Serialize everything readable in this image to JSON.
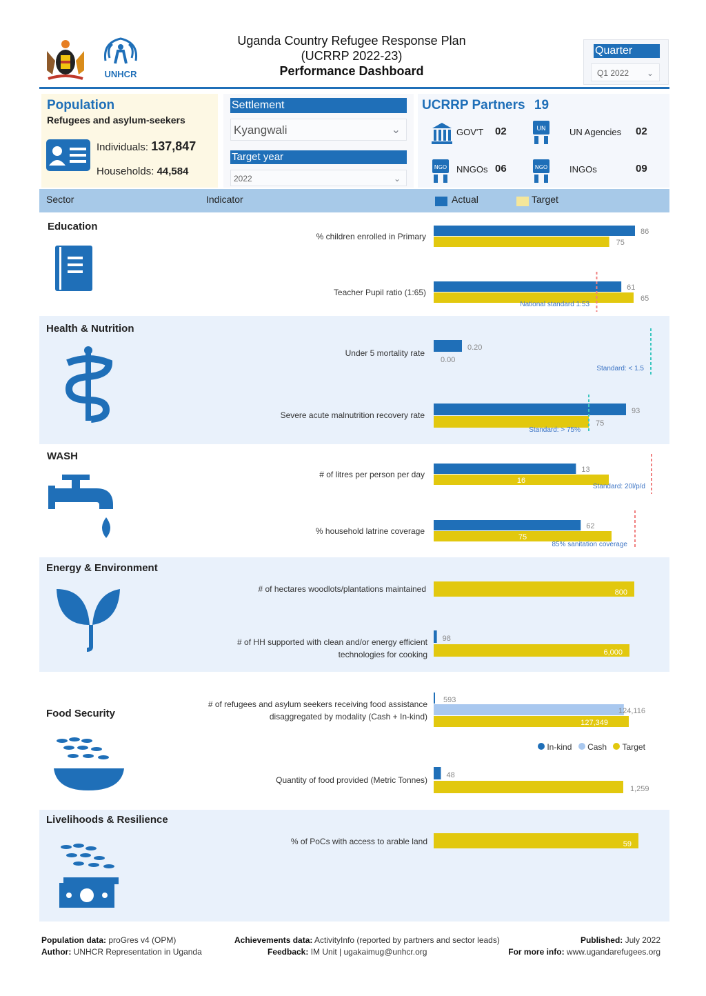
{
  "header": {
    "title_line1": "Uganda Country Refugee Response Plan",
    "title_line2": "(UCRRP 2022-23)",
    "title_line3": "Performance Dashboard",
    "unhcr_label": "UNHCR",
    "quarter_header": "Quarter",
    "quarter_value": "Q1 2022"
  },
  "population": {
    "title": "Population",
    "subtitle": "Refugees and asylum-seekers",
    "individuals_label": "Individuals:",
    "individuals_value": "137,847",
    "households_label": "Households:",
    "households_value": "44,584"
  },
  "filters": {
    "settlement_header": "Settlement",
    "settlement_value": "Kyangwali",
    "target_year_header": "Target year",
    "target_year_value": "2022"
  },
  "partners": {
    "title": "UCRRP Partners",
    "total": "19",
    "govt_label": "GOV'T",
    "govt_value": "02",
    "un_label": "UN Agencies",
    "un_value": "02",
    "nngo_label": "NNGOs",
    "nngo_value": "06",
    "ingo_label": "INGOs",
    "ingo_value": "09"
  },
  "table_header": {
    "sector": "Sector",
    "indicator": "Indicator",
    "actual": "Actual",
    "target": "Target"
  },
  "colors": {
    "actual": "#1f6fb8",
    "target": "#e2c80e",
    "cash": "#a9c8ef",
    "brand_blue": "#1f6fb8",
    "section_bg": "#e9f1fb",
    "standard_red": "#f08080",
    "standard_teal": "#3cc7c0"
  },
  "sectors": {
    "education": "Education",
    "health": "Health & Nutrition",
    "wash": "WASH",
    "energy": "Energy & Environment",
    "food": "Food Security",
    "livelihoods": "Livelihoods & Resilience"
  },
  "food_legend": {
    "inkind": "In-kind",
    "cash": "Cash",
    "target": "Target"
  },
  "chart_data": [
    {
      "type": "bar",
      "sector": "Education",
      "indicator": "% children enrolled in Primary",
      "actual": 86,
      "target": 75,
      "actual_label": "86",
      "target_label": "75"
    },
    {
      "type": "bar",
      "sector": "Education",
      "indicator": "Teacher Pupil ratio (1:65)",
      "actual": 61,
      "target": 65,
      "actual_label": "61",
      "target_label": "65",
      "standard_label": "National standard 1:53",
      "standard_value": 53
    },
    {
      "type": "bar",
      "sector": "Health & Nutrition",
      "indicator": "Under 5 mortality rate",
      "actual": 0.2,
      "target": 0.0,
      "actual_label": "0.20",
      "target_label": "0.00",
      "standard_label": "Standard: < 1.5",
      "standard_value": 1.5
    },
    {
      "type": "bar",
      "sector": "Health & Nutrition",
      "indicator": "Severe acute malnutrition recovery rate",
      "actual": 93,
      "target": 75,
      "actual_label": "93",
      "target_label": "75",
      "standard_label": "Standard: > 75%",
      "standard_value": 75
    },
    {
      "type": "bar",
      "sector": "WASH",
      "indicator": "# of litres per person per day",
      "actual": 13,
      "target": 16,
      "actual_label": "13",
      "target_label": "16",
      "standard_label": "Standard: 20l/p/d",
      "standard_value": 20
    },
    {
      "type": "bar",
      "sector": "WASH",
      "indicator": "% household latrine coverage",
      "actual": 62,
      "target": 75,
      "actual_label": "62",
      "target_label": "75",
      "standard_label": "85% sanitation coverage",
      "standard_value": 85
    },
    {
      "type": "bar",
      "sector": "Energy & Environment",
      "indicator": "# of hectares woodlots/plantations maintained",
      "actual": 0,
      "target": 800,
      "target_label": "800"
    },
    {
      "type": "bar",
      "sector": "Energy & Environment",
      "indicator": "# of HH supported with clean and/or energy efficient technologies for cooking",
      "actual": 98,
      "target": 6000,
      "actual_label": "98",
      "target_label": "6,000"
    },
    {
      "type": "bar",
      "sector": "Food Security",
      "indicator": "# of refugees and asylum seekers receiving food assistance disaggregated by modality (Cash + In-kind)",
      "inkind": 593,
      "cash": 124116,
      "target": 127349,
      "inkind_label": "593",
      "cash_label": "124,116",
      "target_label": "127,349"
    },
    {
      "type": "bar",
      "sector": "Food Security",
      "indicator": "Quantity of food provided (Metric Tonnes)",
      "actual": 48,
      "target": 1259,
      "actual_label": "48",
      "target_label": "1,259"
    },
    {
      "type": "bar",
      "sector": "Livelihoods & Resilience",
      "indicator": "% of PoCs with access to arable land",
      "actual": 0,
      "target": 59,
      "target_label": "59"
    }
  ],
  "footer": {
    "pop_label": "Population data:",
    "pop_value": "proGres v4 (OPM)",
    "author_label": "Author:",
    "author_value": "UNHCR Representation in Uganda",
    "ach_label": "Achievements data:",
    "ach_value": "ActivityInfo (reported by partners and sector leads)",
    "feedback_label": "Feedback:",
    "feedback_value": "IM Unit | ugakaimug@unhcr.org",
    "published_label": "Published:",
    "published_value": "July 2022",
    "info_label": "For more info:",
    "info_value": "www.ugandarefugees.org"
  }
}
